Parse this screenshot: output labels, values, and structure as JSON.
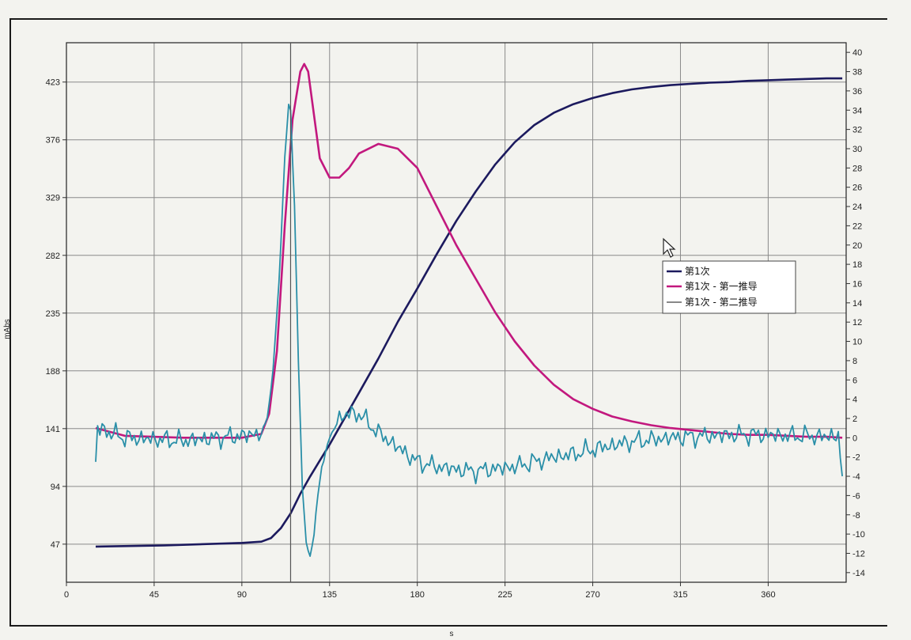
{
  "chart_data": {
    "type": "line",
    "title": "",
    "xlabel": "s",
    "ylabel_left": "mAbs",
    "ylabel_right": "",
    "xlim": [
      0,
      400
    ],
    "ylim_left": [
      16,
      455
    ],
    "ylim_right": [
      -15,
      41
    ],
    "grid": true,
    "legend_position": "center-right",
    "x_ticks": [
      0,
      45,
      90,
      135,
      180,
      225,
      270,
      315,
      360
    ],
    "y_left_ticks": [
      47,
      94,
      141,
      188,
      235,
      282,
      329,
      376,
      423
    ],
    "y_right_ticks": [
      -14,
      -12,
      -10,
      -8,
      -6,
      -4,
      -2,
      0,
      2,
      4,
      6,
      8,
      10,
      12,
      14,
      16,
      18,
      20,
      22,
      24,
      26,
      28,
      30,
      32,
      34,
      36,
      38,
      40
    ],
    "cursor_x": 115,
    "series": [
      {
        "name": "第1次",
        "axis": "left",
        "color": "#1c1a5e",
        "x": [
          15,
          50,
          90,
          100,
          105,
          110,
          115,
          120,
          125,
          130,
          135,
          140,
          150,
          160,
          170,
          180,
          190,
          200,
          210,
          220,
          230,
          240,
          250,
          260,
          270,
          280,
          290,
          300,
          310,
          320,
          330,
          340,
          350,
          360,
          370,
          380,
          390,
          398
        ],
        "y": [
          45,
          46,
          48,
          49,
          52,
          60,
          72,
          88,
          102,
          115,
          128,
          142,
          170,
          198,
          228,
          255,
          283,
          310,
          334,
          356,
          374,
          388,
          398,
          405,
          410,
          414,
          417,
          419,
          420.5,
          421.5,
          422.5,
          423,
          424,
          424.5,
          425,
          425.5,
          426,
          426
        ]
      },
      {
        "name": "第1次 - 第一推导",
        "axis": "right",
        "color": "#c2187e",
        "x": [
          15,
          30,
          60,
          90,
          100,
          104,
          108,
          112,
          116,
          120,
          122,
          124,
          126,
          130,
          135,
          140,
          145,
          150,
          160,
          170,
          180,
          190,
          200,
          210,
          220,
          230,
          240,
          250,
          260,
          270,
          280,
          290,
          300,
          310,
          320,
          330,
          340,
          350,
          360,
          370,
          380,
          390,
          398
        ],
        "y": [
          1,
          0.2,
          0,
          0,
          0.4,
          2.5,
          9,
          22,
          33,
          38,
          38.8,
          38,
          35,
          29,
          27,
          27,
          28,
          29.5,
          30.5,
          30,
          28,
          24,
          20,
          16.5,
          13,
          10,
          7.5,
          5.5,
          4,
          3,
          2.2,
          1.7,
          1.3,
          1,
          0.8,
          0.6,
          0.4,
          0.3,
          0.3,
          0.2,
          0.1,
          0.1,
          0
        ]
      },
      {
        "name": "第1次 - 第二推导",
        "axis": "right",
        "color": "#2a8fa8",
        "x": [
          15,
          16,
          30,
          60,
          90,
          100,
          103,
          106,
          109,
          112,
          114,
          115,
          117,
          119,
          121,
          123,
          125,
          127,
          129,
          131,
          133,
          135,
          140,
          145,
          150,
          155,
          160,
          170,
          180,
          190,
          200,
          210,
          220,
          230,
          240,
          250,
          260,
          270,
          280,
          290,
          300,
          310,
          320,
          330,
          340,
          350,
          360,
          370,
          380,
          390,
          396,
          398
        ],
        "y": [
          -2.5,
          1,
          0,
          -0.3,
          0.2,
          0.5,
          2,
          7,
          16,
          29,
          34.5,
          34,
          24,
          8,
          -5,
          -11,
          -12.3,
          -10,
          -6,
          -3,
          -1.5,
          0,
          2,
          2.5,
          2.5,
          1.5,
          0.5,
          -1,
          -2.5,
          -3,
          -3.3,
          -3.5,
          -3.2,
          -3,
          -2.5,
          -2,
          -1.7,
          -1.2,
          -0.8,
          -0.4,
          -0.2,
          0,
          0.1,
          0.2,
          0.3,
          0.3,
          0.3,
          0.2,
          0.2,
          0.1,
          0.3,
          -4
        ]
      }
    ]
  }
}
